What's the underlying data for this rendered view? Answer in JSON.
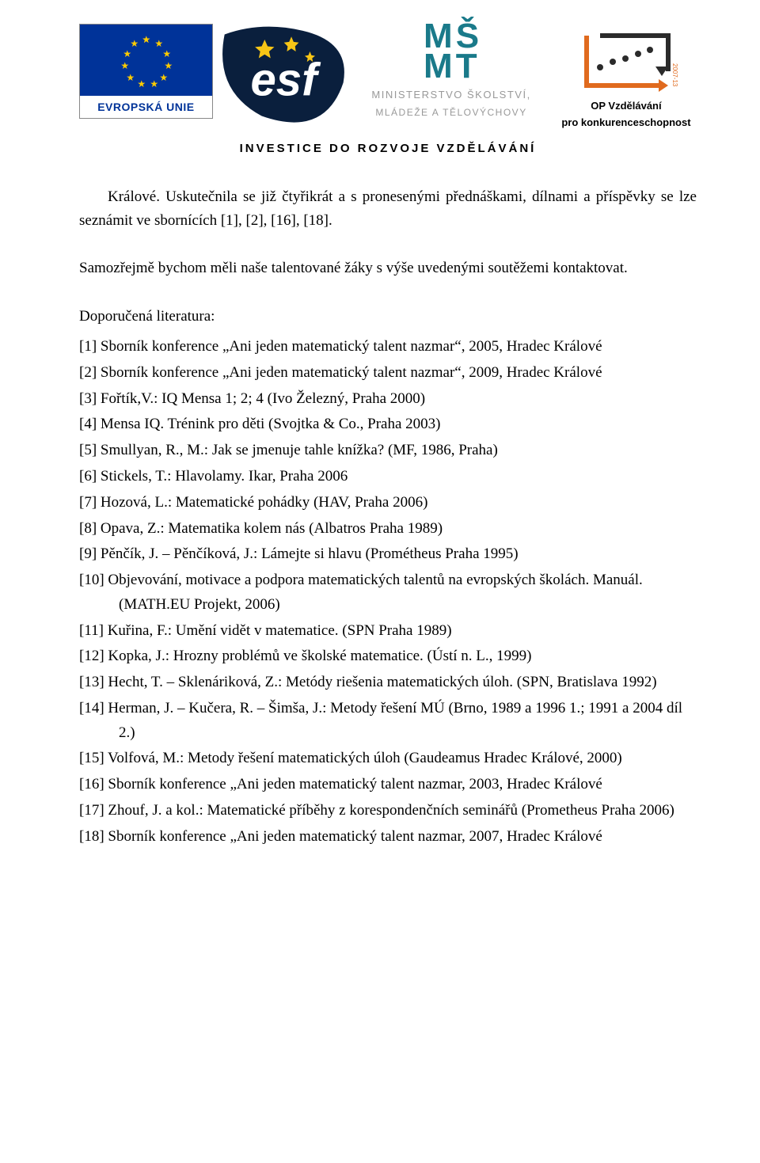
{
  "header": {
    "eu_label": "EVROPSKÁ UNIE",
    "msmt_line1": "MINISTERSTVO ŠKOLSTVÍ,",
    "msmt_line2": "MLÁDEŽE A TĚLOVÝCHOVY",
    "op_line1": "OP Vzdělávání",
    "op_line2": "pro konkurenceschopnost",
    "tagline": "INVESTICE DO ROZVOJE VZDĚLÁVÁNÍ"
  },
  "body": {
    "para1": "Králové. Uskutečnila se již čtyřikrát a s pronesenými přednáškami, dílnami a příspěvky se lze seznámit ve sbornících [1], [2], [16], [18].",
    "para2": "Samozřejmě bychom měli naše talentované žáky s výše uvedenými soutěžemi kontaktovat.",
    "section_title": "Doporučená literatura:"
  },
  "references": [
    "[1]  Sborník konference „Ani jeden matematický talent nazmar“, 2005, Hradec Králové",
    "[2]  Sborník konference „Ani jeden matematický talent nazmar“, 2009, Hradec Králové",
    "[3]  Fořtík,V.: IQ Mensa 1; 2; 4 (Ivo Železný, Praha 2000)",
    "[4]  Mensa IQ. Trénink pro děti (Svojtka & Co., Praha 2003)",
    "[5]  Smullyan, R., M.: Jak se jmenuje tahle knížka? (MF, 1986, Praha)",
    "[6]  Stickels, T.: Hlavolamy. Ikar, Praha 2006",
    "[7] Hozová, L.: Matematické pohádky (HAV, Praha 2006)",
    "[8]  Opava, Z.: Matematika kolem nás (Albatros Praha 1989)",
    "[9]  Pěnčík, J. – Pěnčíková, J.: Lámejte si hlavu (Prométheus Praha 1995)",
    "[10]  Objevování, motivace a podpora matematických talentů na evropských školách. Manuál. (MATH.EU Projekt, 2006)",
    "[11]  Kuřina, F.: Umění vidět v matematice. (SPN Praha 1989)",
    "[12]  Kopka, J.: Hrozny problémů ve školské matematice. (Ústí n. L., 1999)",
    "[13]  Hecht, T. – Sklenáriková, Z.: Metódy riešenia matematických úloh. (SPN, Bratislava 1992)",
    "[14]  Herman, J. – Kučera, R. – Šimša, J.: Metody řešení MÚ (Brno, 1989 a 1996 1.; 1991 a 2004 díl 2.)",
    "[15]  Volfová, M.: Metody řešení matematických úloh (Gaudeamus Hradec Králové, 2000)",
    "[16]  Sborník konference „Ani jeden matematický talent nazmar, 2003, Hradec Králové",
    "[17]  Zhouf, J. a kol.: Matematické příběhy z korespondenčních seminářů (Prometheus Praha 2006)",
    "[18]  Sborník konference „Ani jeden matematický talent nazmar, 2007, Hradec Králové"
  ],
  "colors": {
    "eu_blue": "#003399",
    "eu_yellow": "#ffcc00",
    "esf_dark": "#0a1f3d",
    "esf_star": "#f7c516",
    "msmt_teal": "#1a7a8a",
    "msmt_grey": "#999999",
    "op_orange": "#e06a1e",
    "op_dark": "#2b2b2b",
    "text": "#000000",
    "background": "#ffffff"
  },
  "typography": {
    "body_font": "Times New Roman",
    "body_size_pt": 14,
    "header_font": "Arial",
    "tagline_spacing": 3
  }
}
